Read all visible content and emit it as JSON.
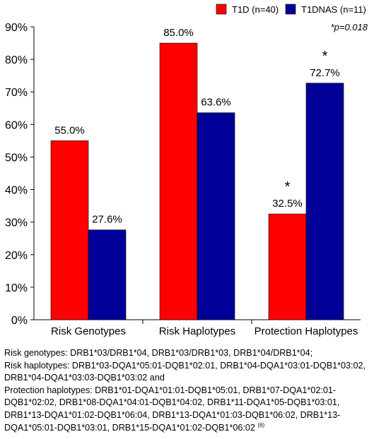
{
  "chart_data": {
    "type": "bar",
    "categories": [
      "Risk Genotypes",
      "Risk Haplotypes",
      "Protection Haplotypes"
    ],
    "series": [
      {
        "name": "T1D (n=40)",
        "color": "#ff0000",
        "values": [
          55.0,
          85.0,
          32.5
        ],
        "labels": [
          "55.0%",
          "85.0%",
          "32.5%"
        ],
        "stars": [
          "",
          "",
          "*"
        ]
      },
      {
        "name": "T1DNAS (n=11)",
        "color": "#000099",
        "values": [
          27.6,
          63.6,
          72.7
        ],
        "labels": [
          "27.6%",
          "63.6%",
          "72.7%"
        ],
        "stars": [
          "",
          "",
          "*"
        ]
      }
    ],
    "ylim": [
      0,
      90
    ],
    "yticks": [
      0,
      10,
      20,
      30,
      40,
      50,
      60,
      70,
      80,
      90
    ],
    "ytick_labels": [
      "0%",
      "10%",
      "20%",
      "30%",
      "40%",
      "50%",
      "60%",
      "70%",
      "80%",
      "90%"
    ],
    "legend_position": "top-right",
    "annotation": "*p=0.018",
    "grid": false
  },
  "notes": {
    "line1": "Risk genotypes: DRB1*03/DRB1*04, DRB1*03/DRB1*03, DRB1*04/DRB1*04;",
    "line2": "Risk haplotypes: DRB1*03-DQA1*05:01-DQB1*02:01, DRB1*04-DQA1*03:01-DQB1*03:02,",
    "line3": "DRB1*04-DQA1*03:03-DQB1*03:02 and",
    "line4": "Protection haplotypes: DRB1*01-DQA1*01:01-DQB1*05:01, DRB1*07-DQA1*02:01-",
    "line5": "DQB1*02:02, DRB1*08-DQA1*04:01-DQB1*04:02, DRB1*11-DQA1*05-DQB1*03:01,",
    "line6": "DRB1*13-DQA1*01:02-DQB1*06:04, DRB1*13-DQA1*01:03-DQB1*06:02, DRB1*13-",
    "line7": "DQA1*05:01-DQB1*03:01, DRB1*15-DQA1*01:02-DQB1*06:02",
    "ref": "(6)"
  }
}
